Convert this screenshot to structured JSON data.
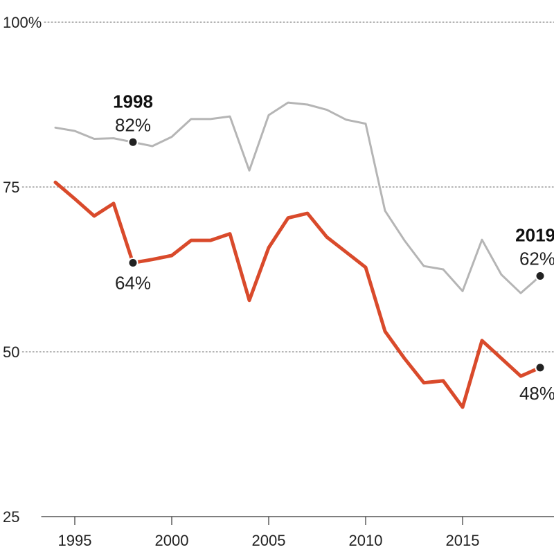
{
  "chart_data": {
    "type": "line",
    "xlim": [
      1994,
      2019
    ],
    "ylim": [
      25,
      100
    ],
    "y_ticks": [
      {
        "value": 100,
        "label": "100%"
      },
      {
        "value": 75,
        "label": "75"
      },
      {
        "value": 50,
        "label": "50"
      },
      {
        "value": 25,
        "label": "25"
      }
    ],
    "x_ticks": [
      {
        "value": 1995,
        "label": "1995"
      },
      {
        "value": 2000,
        "label": "2000"
      },
      {
        "value": 2005,
        "label": "2005"
      },
      {
        "value": 2010,
        "label": "2010"
      },
      {
        "value": 2015,
        "label": "2015"
      }
    ],
    "grid": "horizontal dotted",
    "x": [
      1994,
      1995,
      1996,
      1997,
      1998,
      1999,
      2000,
      2001,
      2002,
      2003,
      2004,
      2005,
      2006,
      2007,
      2008,
      2009,
      2010,
      2011,
      2012,
      2013,
      2014,
      2015,
      2016,
      2017,
      2018,
      2019
    ],
    "series": [
      {
        "color": "#b5b5b5",
        "values": [
          84,
          83.5,
          82.3,
          82.4,
          81.8,
          81.2,
          82.6,
          85.3,
          85.3,
          85.7,
          77.5,
          85.9,
          87.8,
          87.5,
          86.7,
          85.2,
          84.6,
          71.4,
          66.9,
          63.0,
          62.5,
          59.2,
          67.0,
          61.7,
          58.9,
          61.5
        ]
      },
      {
        "color": "#d94a2b",
        "values": [
          75.7,
          73.2,
          70.6,
          72.5,
          63.5,
          64.0,
          64.6,
          66.9,
          66.9,
          67.9,
          57.8,
          65.8,
          70.3,
          71.0,
          67.4,
          65.1,
          62.8,
          53.1,
          49.0,
          45.3,
          45.6,
          41.6,
          51.7,
          49.0,
          46.3,
          47.6
        ]
      }
    ],
    "highlights": [
      {
        "series": 0,
        "x": 1998,
        "y": 81.8,
        "year": "1998",
        "label": "82%",
        "position": "above"
      },
      {
        "series": 1,
        "x": 1998,
        "y": 63.5,
        "label": "64%",
        "position": "below"
      },
      {
        "series": 0,
        "x": 2019,
        "y": 61.5,
        "year": "2019",
        "label": "62%",
        "position": "above-left"
      },
      {
        "series": 1,
        "x": 2019,
        "y": 47.6,
        "label": "48%",
        "position": "below-left"
      }
    ],
    "marker_color": "#222222"
  }
}
